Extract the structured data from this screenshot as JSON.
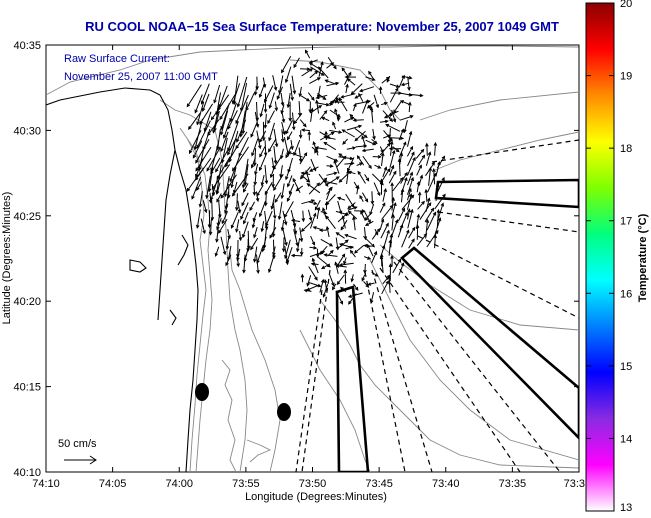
{
  "title": "RU COOL  NOAA−15  Sea Surface Temperature:  November 25, 2007 1049 GMT",
  "annotation": {
    "line1": "Raw Surface Current:",
    "line2": "November 25, 2007 11:00 GMT"
  },
  "scale": {
    "label": "50 cm/s",
    "speed_cm_s": 50
  },
  "axes": {
    "xlabel": "Longitude (Degrees:Minutes)",
    "ylabel": "Latitude (Degrees:Minutes)",
    "x_ticks": [
      "74:10",
      "74:05",
      "74:00",
      "73:55",
      "73:50",
      "73:45",
      "73:40",
      "73:35",
      "73:3"
    ],
    "y_ticks": [
      "40:35",
      "40:30",
      "40:25",
      "40:20",
      "40:15",
      "40:10"
    ]
  },
  "colorbar": {
    "label": "Temperature (°C)",
    "ticks": [
      "20",
      "19",
      "18",
      "17",
      "16",
      "15",
      "14",
      "13"
    ],
    "colors": [
      "#8b0000",
      "#ff0000",
      "#ff8c00",
      "#ffff00",
      "#7fff00",
      "#00ff7f",
      "#00ffff",
      "#0080ff",
      "#0000ff",
      "#8a2be2",
      "#ff00ff",
      "#ffffff"
    ]
  },
  "colors": {
    "title": "#0000aa",
    "annotation": "#0000aa",
    "contour": "#888888",
    "coast": "#000000"
  }
}
